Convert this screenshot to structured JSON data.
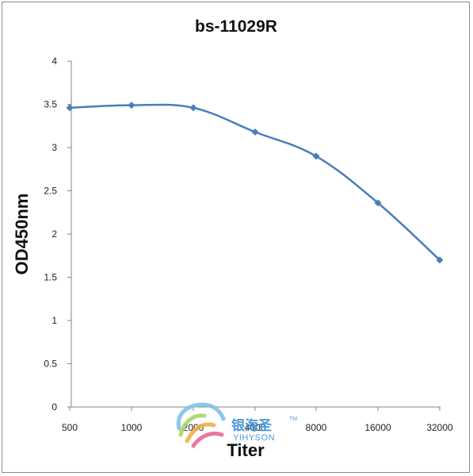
{
  "chart_data": {
    "type": "line",
    "title": "bs-11029R",
    "xlabel": "Titer",
    "ylabel": "OD450nm",
    "categories": [
      "500",
      "1000",
      "2000",
      "4000",
      "8000",
      "16000",
      "32000"
    ],
    "series": [
      {
        "values": [
          3.46,
          3.49,
          3.46,
          3.18,
          2.9,
          2.36,
          1.7
        ]
      }
    ],
    "ylim": [
      0,
      4
    ],
    "yticks": [
      "0",
      "0.5",
      "1",
      "1.5",
      "2",
      "2.5",
      "3",
      "3.5",
      "4"
    ],
    "grid": false,
    "line_color": "#4a7ebb",
    "marker": "diamond"
  },
  "watermark": {
    "cn": "银海圣",
    "en": "YIHYSON",
    "tm": "TM"
  }
}
